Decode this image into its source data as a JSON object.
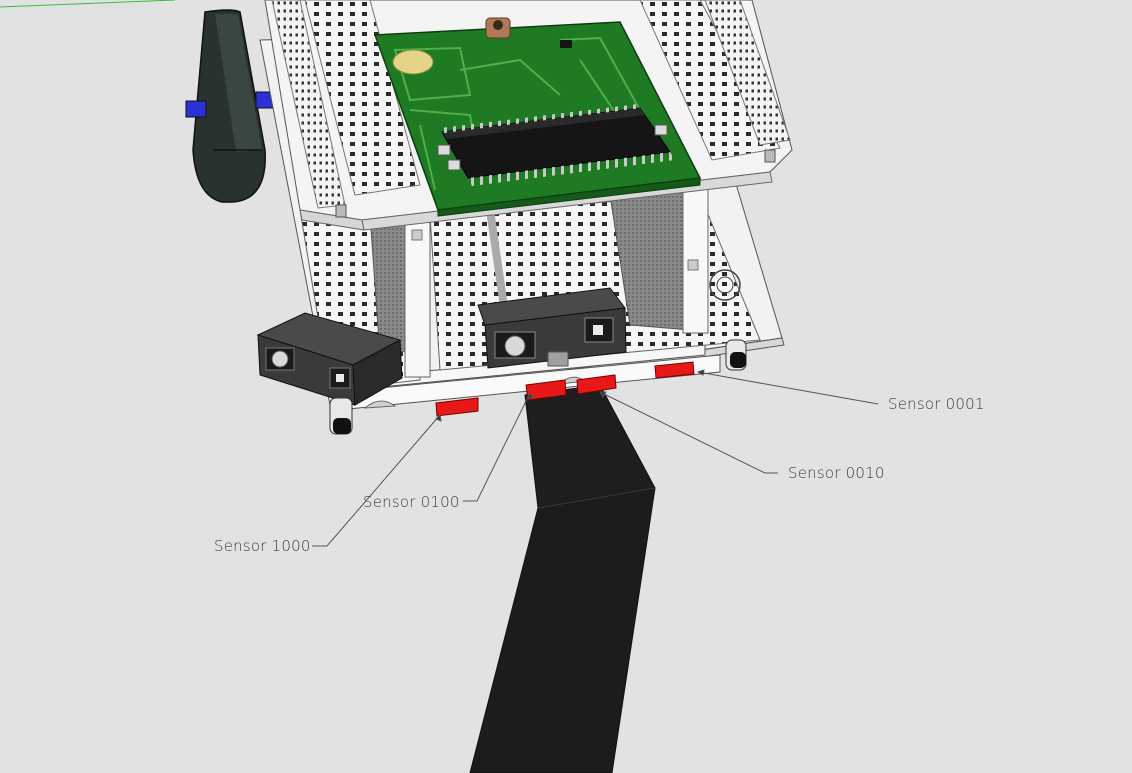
{
  "callouts": {
    "sensor_0001": "Sensor 0001",
    "sensor_0010": "Sensor 0010",
    "sensor_0100": "Sensor 0100",
    "sensor_1000": "Sensor 1000"
  },
  "colors": {
    "background": "#e2e2e2",
    "line_track": "#1e1e1e",
    "sensor_red": "#e81818",
    "pcb_green": "#1f7a24",
    "breadboard": "#f4f4f4",
    "wheel": "#2a3230",
    "rangefinder": "#3a3a3a"
  }
}
